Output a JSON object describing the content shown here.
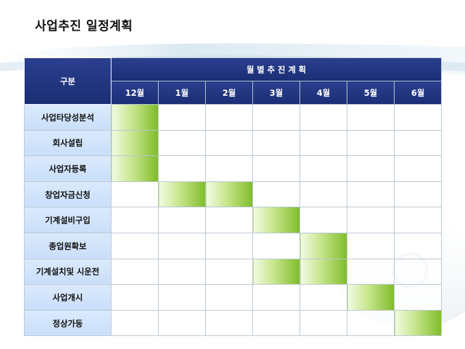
{
  "title": "사업추진 일정계획",
  "header": {
    "corner": "구분",
    "group": "월 별 추 진 계 획",
    "months": [
      "12월",
      "1월",
      "2월",
      "3월",
      "4월",
      "5월",
      "6월"
    ]
  },
  "rows": [
    {
      "task": "사업타당성분석",
      "active": [
        true,
        false,
        false,
        false,
        false,
        false,
        false
      ]
    },
    {
      "task": "회사설립",
      "active": [
        true,
        false,
        false,
        false,
        false,
        false,
        false
      ]
    },
    {
      "task": "사업자등록",
      "active": [
        true,
        false,
        false,
        false,
        false,
        false,
        false
      ]
    },
    {
      "task": "창업자금신청",
      "active": [
        false,
        true,
        true,
        false,
        false,
        false,
        false
      ]
    },
    {
      "task": "기계설비구입",
      "active": [
        false,
        false,
        false,
        true,
        false,
        false,
        false
      ]
    },
    {
      "task": "종업원확보",
      "active": [
        false,
        false,
        false,
        false,
        true,
        false,
        false
      ]
    },
    {
      "task": "기계설치및 시운전",
      "active": [
        false,
        false,
        false,
        true,
        true,
        false,
        false
      ]
    },
    {
      "task": "사업개시",
      "active": [
        false,
        false,
        false,
        false,
        false,
        true,
        false
      ]
    },
    {
      "task": "정상가동",
      "active": [
        false,
        false,
        false,
        false,
        false,
        false,
        true
      ]
    }
  ],
  "colors": {
    "header": "#1f3380",
    "task_bg": "#d3e4fb",
    "bar_start": "#f3fbe4",
    "bar_end": "#7fbc2a"
  }
}
